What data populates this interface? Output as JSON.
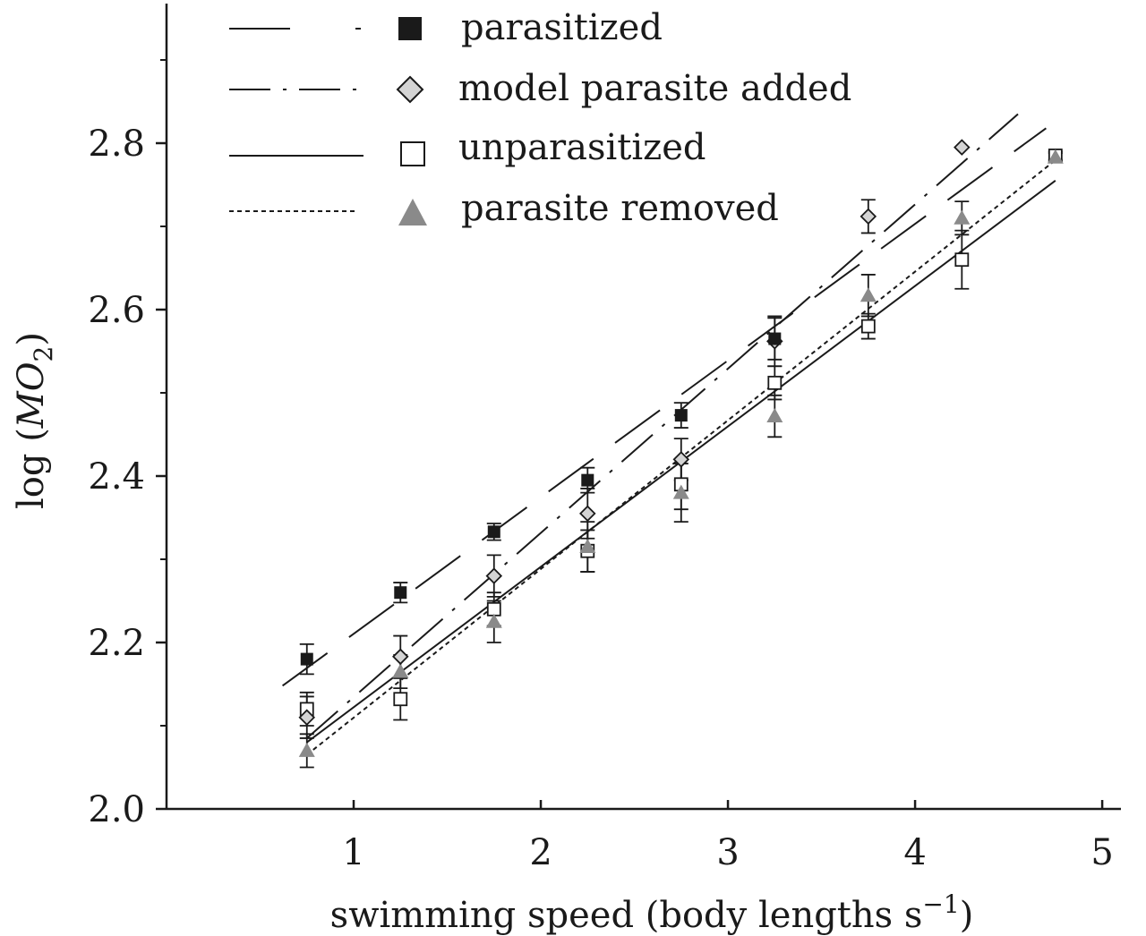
{
  "chart_data": {
    "type": "scatter",
    "xlabel_main": "swimming speed (body lengths s",
    "xlabel_sup": "−1",
    "xlabel_close": ")",
    "ylabel_prefix": "log (",
    "ylabel_italic": "MO",
    "ylabel_sub": "2",
    "ylabel_suffix": ")",
    "xlim": [
      0,
      5.1
    ],
    "ylim": [
      2.0,
      2.95
    ],
    "xticks": [
      1,
      2,
      3,
      4,
      5
    ],
    "xtick_labels": [
      "1",
      "2",
      "3",
      "4",
      "5"
    ],
    "yticks": [
      2.0,
      2.2,
      2.4,
      2.6,
      2.8
    ],
    "ytick_labels": [
      "2.0",
      "2.2",
      "2.4",
      "2.6",
      "2.8"
    ],
    "legend_position": "top-left",
    "grid": false,
    "series": [
      {
        "name": "parasitized",
        "key": "parasitized",
        "marker": "square",
        "marker_fill": "#1a1a1a",
        "line_style": "long-dash",
        "x": [
          0.75,
          1.25,
          1.75,
          2.25,
          2.75,
          3.25
        ],
        "y": [
          2.18,
          2.26,
          2.333,
          2.395,
          2.473,
          2.565
        ],
        "err": [
          0.018,
          0.012,
          0.01,
          0.015,
          0.015,
          0.025
        ],
        "fit": {
          "x0": 0.62,
          "y0": 2.148,
          "x1": 4.7,
          "y1": 2.818
        }
      },
      {
        "name": "model parasite added",
        "key": "model",
        "marker": "diamond",
        "marker_fill": "#d4d4d4",
        "line_style": "dash-dot",
        "x": [
          0.75,
          1.25,
          1.75,
          2.25,
          2.75,
          3.25,
          3.75,
          4.25
        ],
        "y": [
          2.11,
          2.183,
          2.28,
          2.355,
          2.42,
          2.562,
          2.712,
          2.795
        ],
        "err": [
          0.025,
          0.025,
          0.025,
          0.03,
          0.025,
          0.03,
          0.02,
          0.0
        ],
        "fit": {
          "x0": 0.75,
          "y0": 2.085,
          "x1": 4.55,
          "y1": 2.835
        }
      },
      {
        "name": "unparasitized",
        "key": "unparasitized",
        "marker": "square-open",
        "marker_fill": "#ffffff",
        "line_style": "solid",
        "x": [
          0.75,
          1.25,
          1.75,
          2.25,
          2.75,
          3.25,
          3.75,
          4.25,
          4.75
        ],
        "y": [
          2.12,
          2.132,
          2.24,
          2.31,
          2.39,
          2.512,
          2.58,
          2.66,
          2.785
        ],
        "err": [
          0.02,
          0.025,
          0.02,
          0.025,
          0.03,
          0.02,
          0.015,
          0.035,
          0.005
        ],
        "fit": {
          "x0": 0.75,
          "y0": 2.08,
          "x1": 4.75,
          "y1": 2.755
        }
      },
      {
        "name": "parasite removed",
        "key": "removed",
        "marker": "triangle",
        "marker_fill": "#8a8a8a",
        "line_style": "dotted",
        "x": [
          0.75,
          1.25,
          1.75,
          2.25,
          2.75,
          3.25,
          3.75,
          4.25,
          4.75
        ],
        "y": [
          2.07,
          2.165,
          2.225,
          2.315,
          2.38,
          2.472,
          2.617,
          2.71,
          2.783
        ],
        "err": [
          0.02,
          0.02,
          0.025,
          0.03,
          0.035,
          0.025,
          0.025,
          0.02,
          0.005
        ],
        "fit": {
          "x0": 0.75,
          "y0": 2.065,
          "x1": 4.78,
          "y1": 2.785
        }
      }
    ]
  }
}
